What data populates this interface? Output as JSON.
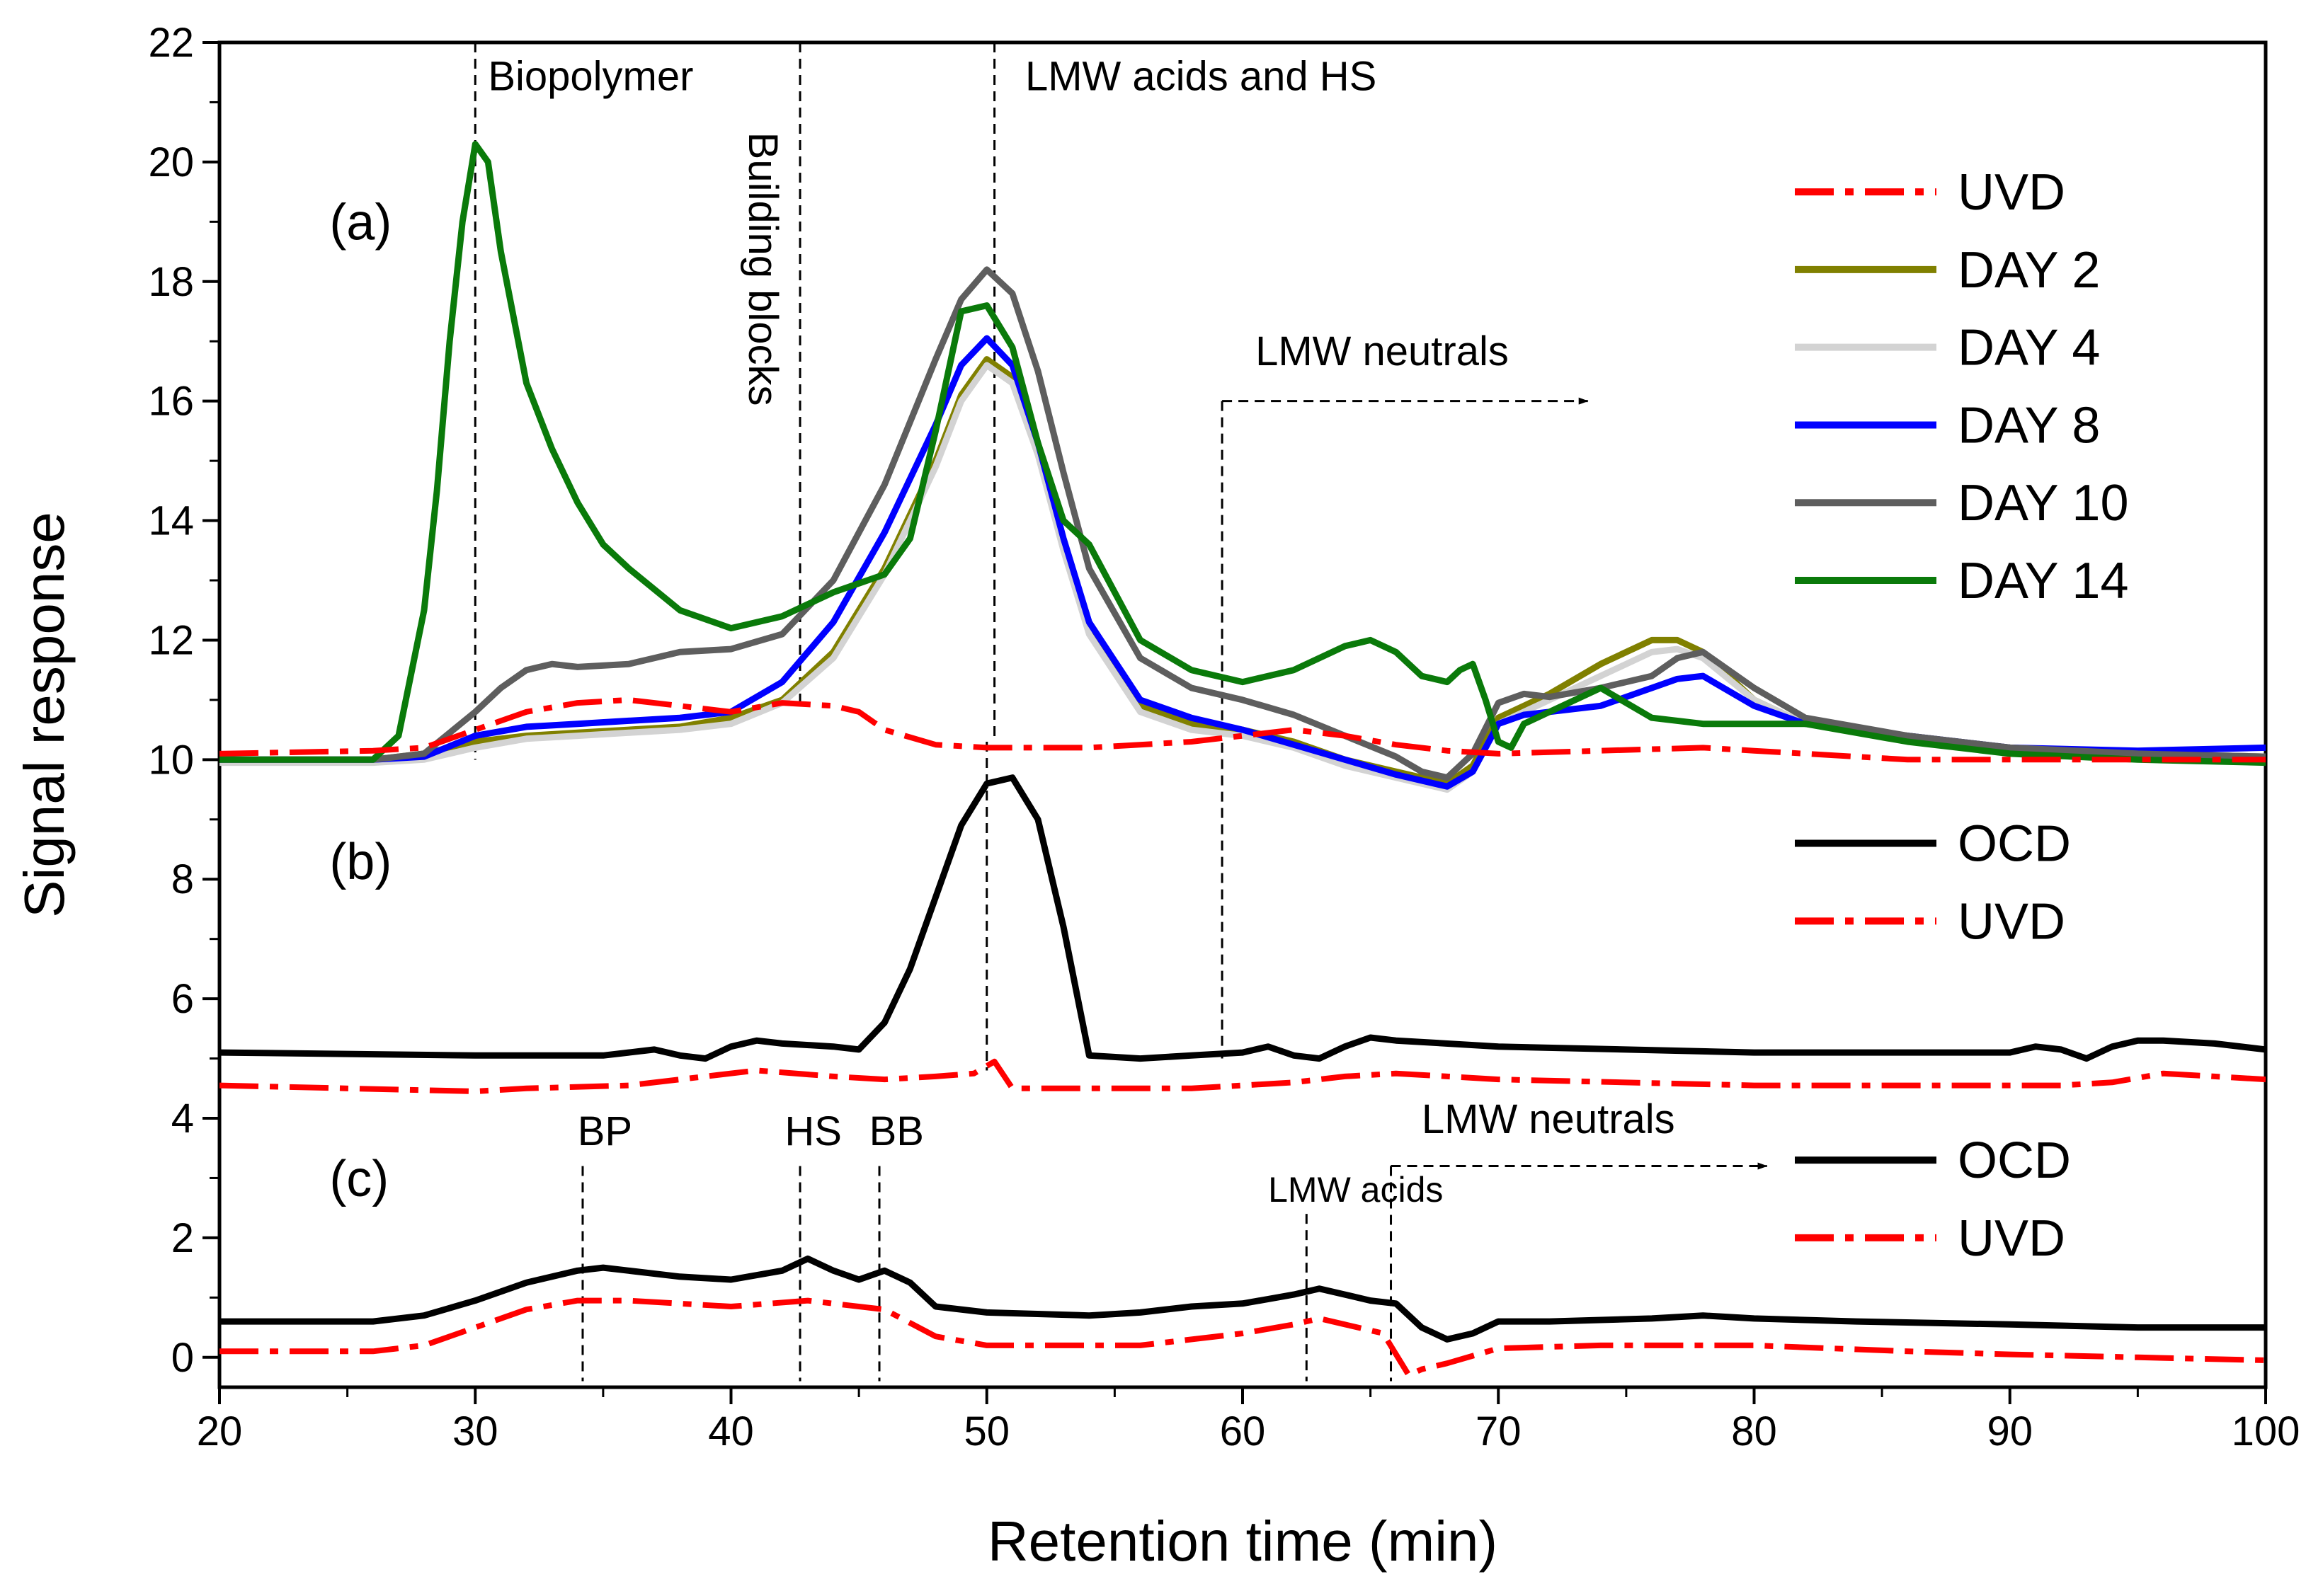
{
  "chart_data": {
    "type": "line",
    "xlabel": "Retention time (min)",
    "ylabel": "Signal response",
    "xlim": [
      20,
      100
    ],
    "ylim": [
      -0.5,
      22
    ],
    "xticks": [
      20,
      30,
      40,
      50,
      60,
      70,
      80,
      90,
      100
    ],
    "yticks": [
      0,
      2,
      4,
      6,
      8,
      10,
      12,
      14,
      16,
      18,
      20,
      22
    ],
    "panel_labels": [
      {
        "text": "(a)",
        "x": 24.3,
        "y": 18.7
      },
      {
        "text": "(b)",
        "x": 24.3,
        "y": 8.0
      },
      {
        "text": "(c)",
        "x": 24.3,
        "y": 2.7
      }
    ],
    "annotations": [
      {
        "text": "Biopolymer",
        "x": 30.5,
        "y": 21.2,
        "rotate": false
      },
      {
        "text": "Building blocks",
        "x": 40.7,
        "y": 20.5,
        "rotate": true
      },
      {
        "text": "LMW acids and HS",
        "x": 51.5,
        "y": 21.2,
        "rotate": false
      },
      {
        "text": "LMW neutrals",
        "x": 60.5,
        "y": 16.6,
        "rotate": false
      },
      {
        "text": "BP",
        "x": 34.0,
        "y": 3.55,
        "rotate": false
      },
      {
        "text": "HS",
        "x": 42.1,
        "y": 3.55,
        "rotate": false
      },
      {
        "text": "BB",
        "x": 45.4,
        "y": 3.55,
        "rotate": false
      },
      {
        "text": "LMW acids",
        "x": 61.0,
        "y": 2.6,
        "rotate": false,
        "small": true
      },
      {
        "text": "LMW neutrals",
        "x": 67.0,
        "y": 3.75,
        "rotate": false
      }
    ],
    "guide_lines": [
      {
        "x1": 30,
        "y1": 22,
        "x2": 30,
        "y2": 10
      },
      {
        "x1": 42.7,
        "y1": 22,
        "x2": 42.7,
        "y2": 10.9
      },
      {
        "x1": 50.3,
        "y1": 22,
        "x2": 50.3,
        "y2": 10.3
      },
      {
        "x1": 50.0,
        "y1": 10.3,
        "x2": 50.0,
        "y2": 4.8
      },
      {
        "x1": 59.2,
        "y1": 16.0,
        "x2": 59.2,
        "y2": 5.0
      },
      {
        "x1": 59.2,
        "y1": 16.0,
        "x2": 73.5,
        "y2": 16.0,
        "arrow": true
      },
      {
        "x1": 34.2,
        "y1": 3.2,
        "x2": 34.2,
        "y2": -0.4
      },
      {
        "x1": 42.7,
        "y1": 3.2,
        "x2": 42.7,
        "y2": -0.4
      },
      {
        "x1": 45.8,
        "y1": 3.2,
        "x2": 45.8,
        "y2": -0.4
      },
      {
        "x1": 62.5,
        "y1": 2.4,
        "x2": 62.5,
        "y2": -0.4
      },
      {
        "x1": 65.8,
        "y1": 3.2,
        "x2": 65.8,
        "y2": -0.4
      },
      {
        "x1": 65.8,
        "y1": 3.2,
        "x2": 80.5,
        "y2": 3.2,
        "arrow": true
      }
    ],
    "legends": [
      {
        "group": "a",
        "entries": [
          {
            "label": "UVD",
            "color": "#ff0000",
            "dash": "dashdot",
            "y": 19.5
          },
          {
            "label": "DAY 2",
            "color": "#808000",
            "dash": "solid",
            "y": 18.2
          },
          {
            "label": "DAY 4",
            "color": "#d3d3d3",
            "dash": "solid",
            "y": 16.9
          },
          {
            "label": "DAY 8",
            "color": "#0000ff",
            "dash": "solid",
            "y": 15.6
          },
          {
            "label": "DAY 10",
            "color": "#5e5e5e",
            "dash": "solid",
            "y": 14.3
          },
          {
            "label": "DAY 14",
            "color": "#0a7a0a",
            "dash": "solid",
            "y": 13.0
          }
        ]
      },
      {
        "group": "b",
        "entries": [
          {
            "label": "OCD",
            "color": "#000000",
            "dash": "solid",
            "y": 8.6
          },
          {
            "label": "UVD",
            "color": "#ff0000",
            "dash": "dashdot",
            "y": 7.3
          }
        ]
      },
      {
        "group": "c",
        "entries": [
          {
            "label": "OCD",
            "color": "#000000",
            "dash": "solid",
            "y": 3.3
          },
          {
            "label": "UVD",
            "color": "#ff0000",
            "dash": "dashdot",
            "y": 2.0
          }
        ]
      }
    ],
    "series": [
      {
        "name": "DAY 2",
        "panel": "a",
        "color": "#808000",
        "dash": "solid",
        "x": [
          20,
          26,
          28,
          30,
          32,
          34,
          36,
          38,
          40,
          42,
          44,
          46,
          48,
          49,
          50,
          51,
          52,
          53,
          54,
          56,
          58,
          60,
          62,
          64,
          66,
          68,
          69,
          70,
          71,
          72,
          74,
          76,
          77,
          78,
          80,
          82,
          86,
          90,
          95,
          100
        ],
        "y": [
          10.0,
          10.0,
          10.1,
          10.3,
          10.4,
          10.45,
          10.5,
          10.55,
          10.7,
          11.0,
          11.8,
          13.2,
          15.0,
          16.1,
          16.7,
          16.4,
          15.2,
          13.6,
          12.2,
          10.9,
          10.6,
          10.5,
          10.3,
          10.0,
          9.8,
          9.6,
          9.9,
          10.7,
          10.9,
          11.1,
          11.6,
          12.0,
          12.0,
          11.8,
          11.0,
          10.6,
          10.4,
          10.2,
          10.1,
          10.05
        ]
      },
      {
        "name": "DAY 4",
        "panel": "a",
        "color": "#d3d3d3",
        "dash": "solid",
        "x": [
          20,
          26,
          28,
          30,
          32,
          34,
          36,
          38,
          40,
          42,
          44,
          46,
          48,
          49,
          50,
          51,
          52,
          53,
          54,
          56,
          58,
          60,
          62,
          64,
          66,
          68,
          69,
          70,
          71,
          72,
          74,
          76,
          77,
          78,
          80,
          82,
          86,
          90,
          95,
          100
        ],
        "y": [
          9.95,
          9.95,
          10.0,
          10.2,
          10.35,
          10.4,
          10.45,
          10.5,
          10.6,
          10.95,
          11.7,
          13.1,
          14.9,
          16.0,
          16.6,
          16.3,
          15.1,
          13.5,
          12.1,
          10.8,
          10.5,
          10.4,
          10.2,
          9.9,
          9.7,
          9.5,
          9.8,
          10.6,
          10.8,
          11.0,
          11.4,
          11.8,
          11.85,
          11.7,
          11.0,
          10.6,
          10.35,
          10.2,
          10.1,
          10.05
        ]
      },
      {
        "name": "DAY 8",
        "panel": "a",
        "color": "#0000ff",
        "dash": "solid",
        "x": [
          20,
          26,
          28,
          30,
          32,
          34,
          36,
          38,
          40,
          42,
          44,
          46,
          48,
          49,
          50,
          51,
          52,
          53,
          54,
          56,
          58,
          60,
          62,
          64,
          66,
          67,
          68,
          69,
          70,
          71,
          72,
          74,
          76,
          77,
          78,
          80,
          82,
          86,
          90,
          95,
          100
        ],
        "y": [
          10.0,
          10.0,
          10.05,
          10.4,
          10.55,
          10.6,
          10.65,
          10.7,
          10.8,
          11.3,
          12.3,
          13.8,
          15.6,
          16.6,
          17.05,
          16.6,
          15.3,
          13.7,
          12.3,
          11.0,
          10.7,
          10.5,
          10.25,
          10.0,
          9.75,
          9.65,
          9.55,
          9.8,
          10.6,
          10.75,
          10.8,
          10.9,
          11.2,
          11.35,
          11.4,
          10.9,
          10.6,
          10.4,
          10.2,
          10.15,
          10.2
        ]
      },
      {
        "name": "DAY 10",
        "panel": "a",
        "color": "#5e5e5e",
        "dash": "solid",
        "x": [
          20,
          26,
          28,
          30,
          31,
          32,
          33,
          34,
          36,
          38,
          40,
          42,
          44,
          46,
          48,
          49,
          50,
          51,
          52,
          53,
          54,
          56,
          58,
          60,
          62,
          64,
          66,
          67,
          68,
          69,
          70,
          71,
          72,
          74,
          76,
          77,
          78,
          80,
          82,
          86,
          90,
          95,
          100
        ],
        "y": [
          10.0,
          10.0,
          10.1,
          10.8,
          11.2,
          11.5,
          11.6,
          11.55,
          11.6,
          11.8,
          11.85,
          12.1,
          13.0,
          14.6,
          16.7,
          17.7,
          18.2,
          17.8,
          16.5,
          14.8,
          13.2,
          11.7,
          11.2,
          11.0,
          10.75,
          10.4,
          10.05,
          9.8,
          9.7,
          10.1,
          10.95,
          11.1,
          11.05,
          11.2,
          11.4,
          11.7,
          11.8,
          11.2,
          10.7,
          10.4,
          10.2,
          10.1,
          10.05
        ]
      },
      {
        "name": "DAY 14",
        "panel": "a",
        "color": "#0a7a0a",
        "dash": "solid",
        "x": [
          20,
          26,
          27,
          28,
          28.5,
          29,
          29.5,
          30,
          30.5,
          31,
          32,
          33,
          34,
          35,
          36,
          38,
          40,
          42,
          44,
          46,
          47,
          48,
          49,
          50,
          51,
          52,
          53,
          54,
          55,
          56,
          58,
          60,
          62,
          64,
          65,
          66,
          67,
          68,
          68.5,
          69,
          69.5,
          70,
          70.5,
          71,
          72,
          74,
          76,
          78,
          80,
          82,
          86,
          90,
          95,
          100
        ],
        "y": [
          10.0,
          10.0,
          10.4,
          12.5,
          14.5,
          17.0,
          19.0,
          20.3,
          20.0,
          18.5,
          16.3,
          15.2,
          14.3,
          13.6,
          13.2,
          12.5,
          12.2,
          12.4,
          12.8,
          13.1,
          13.7,
          15.5,
          17.5,
          17.6,
          16.9,
          15.3,
          14.0,
          13.6,
          12.8,
          12.0,
          11.5,
          11.3,
          11.5,
          11.9,
          12.0,
          11.8,
          11.4,
          11.3,
          11.5,
          11.6,
          11.0,
          10.3,
          10.2,
          10.6,
          10.8,
          11.2,
          10.7,
          10.6,
          10.6,
          10.6,
          10.3,
          10.1,
          10.0,
          9.95
        ]
      },
      {
        "name": "UVD",
        "panel": "a",
        "color": "#ff0000",
        "dash": "dashdot",
        "x": [
          20,
          26,
          28,
          30,
          32,
          34,
          36,
          38,
          40,
          42,
          44,
          45,
          46,
          48,
          50,
          54,
          58,
          60,
          62,
          64,
          66,
          68,
          70,
          74,
          78,
          80,
          86,
          90,
          95,
          100
        ],
        "y": [
          10.1,
          10.15,
          10.2,
          10.5,
          10.8,
          10.95,
          11.0,
          10.9,
          10.8,
          10.95,
          10.9,
          10.8,
          10.5,
          10.25,
          10.2,
          10.2,
          10.3,
          10.4,
          10.5,
          10.4,
          10.25,
          10.15,
          10.1,
          10.15,
          10.2,
          10.15,
          10.0,
          10.0,
          10.0,
          10.0
        ]
      },
      {
        "name": "OCD",
        "panel": "b",
        "color": "#000000",
        "dash": "solid",
        "x": [
          20,
          30,
          35,
          36,
          37,
          38,
          39,
          40,
          41,
          42,
          44,
          45,
          46,
          47,
          48,
          49,
          50,
          51,
          52,
          53,
          54,
          56,
          58,
          60,
          61,
          62,
          63,
          64,
          65,
          66,
          70,
          80,
          90,
          91,
          92,
          93,
          94,
          95,
          96,
          98,
          100
        ],
        "y": [
          5.1,
          5.05,
          5.05,
          5.1,
          5.15,
          5.05,
          5.0,
          5.2,
          5.3,
          5.25,
          5.2,
          5.15,
          5.6,
          6.5,
          7.7,
          8.9,
          9.6,
          9.7,
          9.0,
          7.2,
          5.05,
          5.0,
          5.05,
          5.1,
          5.2,
          5.05,
          5.0,
          5.2,
          5.35,
          5.3,
          5.2,
          5.1,
          5.1,
          5.2,
          5.15,
          5.0,
          5.2,
          5.3,
          5.3,
          5.25,
          5.15
        ]
      },
      {
        "name": "UVD",
        "panel": "b",
        "color": "#ff0000",
        "dash": "dashdot",
        "x": [
          20,
          30,
          32,
          36,
          41,
          44,
          46,
          48,
          49.5,
          50.3,
          51,
          54,
          58,
          60,
          62,
          64,
          66,
          70,
          80,
          90,
          92,
          94,
          96,
          100
        ],
        "y": [
          4.55,
          4.45,
          4.5,
          4.55,
          4.8,
          4.7,
          4.65,
          4.7,
          4.75,
          4.95,
          4.5,
          4.5,
          4.5,
          4.55,
          4.6,
          4.7,
          4.75,
          4.65,
          4.55,
          4.55,
          4.55,
          4.6,
          4.75,
          4.65
        ]
      },
      {
        "name": "OCD",
        "panel": "c",
        "color": "#000000",
        "dash": "solid",
        "x": [
          20,
          26,
          28,
          30,
          32,
          34,
          35,
          36,
          38,
          40,
          42,
          43,
          44,
          45,
          46,
          47,
          48,
          50,
          54,
          56,
          58,
          60,
          62,
          63,
          64,
          65,
          66,
          67,
          68,
          69,
          70,
          72,
          76,
          78,
          80,
          84,
          90,
          95,
          100
        ],
        "y": [
          0.6,
          0.6,
          0.7,
          0.95,
          1.25,
          1.45,
          1.5,
          1.45,
          1.35,
          1.3,
          1.45,
          1.65,
          1.45,
          1.3,
          1.45,
          1.25,
          0.85,
          0.75,
          0.7,
          0.75,
          0.85,
          0.9,
          1.05,
          1.15,
          1.05,
          0.95,
          0.9,
          0.5,
          0.3,
          0.4,
          0.6,
          0.6,
          0.65,
          0.7,
          0.65,
          0.6,
          0.55,
          0.5,
          0.5
        ]
      },
      {
        "name": "UVD",
        "panel": "c",
        "color": "#ff0000",
        "dash": "dashdot",
        "x": [
          20,
          26,
          28,
          30,
          32,
          34,
          36,
          40,
          43,
          44,
          46,
          48,
          50,
          56,
          60,
          62,
          63,
          64,
          65.5,
          66.5,
          67,
          68,
          70,
          74,
          78,
          80,
          86,
          90,
          95,
          100
        ],
        "y": [
          0.1,
          0.1,
          0.2,
          0.5,
          0.8,
          0.95,
          0.95,
          0.85,
          0.95,
          0.9,
          0.8,
          0.35,
          0.2,
          0.2,
          0.4,
          0.55,
          0.65,
          0.55,
          0.4,
          -0.3,
          -0.2,
          -0.1,
          0.15,
          0.2,
          0.2,
          0.2,
          0.1,
          0.05,
          0.0,
          -0.05
        ]
      }
    ]
  }
}
